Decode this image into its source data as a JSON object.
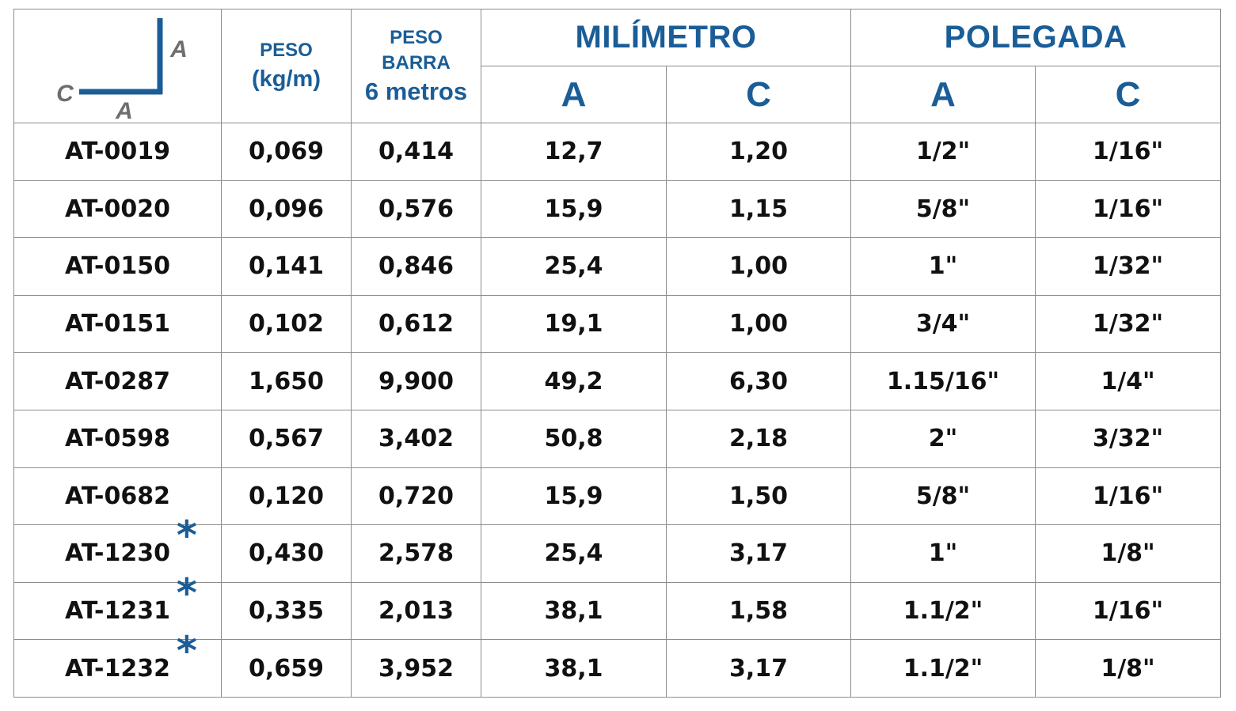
{
  "diagram": {
    "label_side": "A",
    "label_thickness": "C",
    "label_base": "A",
    "line_color": "#1a5d97",
    "label_color": "#6e6e6e"
  },
  "header": {
    "peso_label": "PESO",
    "peso_unit": "(kg/m)",
    "barra_line1": "PESO",
    "barra_line2": "BARRA",
    "barra_line3": "6 metros",
    "milimetro": "MILÍMETRO",
    "polegada": "POLEGADA",
    "mm_a": "A",
    "mm_c": "C",
    "in_a": "A",
    "in_c": "C"
  },
  "accent_color": "#1a5d97",
  "star_icon": "asterisk-icon",
  "rows": [
    {
      "code": "AT-0019",
      "star": false,
      "peso": "0,069",
      "barra": "0,414",
      "mm_a": "12,7",
      "mm_c": "1,20",
      "in_a": "1/2\"",
      "in_c": "1/16\""
    },
    {
      "code": "AT-0020",
      "star": false,
      "peso": "0,096",
      "barra": "0,576",
      "mm_a": "15,9",
      "mm_c": "1,15",
      "in_a": "5/8\"",
      "in_c": "1/16\""
    },
    {
      "code": "AT-0150",
      "star": false,
      "peso": "0,141",
      "barra": "0,846",
      "mm_a": "25,4",
      "mm_c": "1,00",
      "in_a": "1\"",
      "in_c": "1/32\""
    },
    {
      "code": "AT-0151",
      "star": false,
      "peso": "0,102",
      "barra": "0,612",
      "mm_a": "19,1",
      "mm_c": "1,00",
      "in_a": "3/4\"",
      "in_c": "1/32\""
    },
    {
      "code": "AT-0287",
      "star": false,
      "peso": "1,650",
      "barra": "9,900",
      "mm_a": "49,2",
      "mm_c": "6,30",
      "in_a": "1.15/16\"",
      "in_c": "1/4\""
    },
    {
      "code": "AT-0598",
      "star": false,
      "peso": "0,567",
      "barra": "3,402",
      "mm_a": "50,8",
      "mm_c": "2,18",
      "in_a": "2\"",
      "in_c": "3/32\""
    },
    {
      "code": "AT-0682",
      "star": false,
      "peso": "0,120",
      "barra": "0,720",
      "mm_a": "15,9",
      "mm_c": "1,50",
      "in_a": "5/8\"",
      "in_c": "1/16\""
    },
    {
      "code": "AT-1230",
      "star": true,
      "peso": "0,430",
      "barra": "2,578",
      "mm_a": "25,4",
      "mm_c": "3,17",
      "in_a": "1\"",
      "in_c": "1/8\""
    },
    {
      "code": "AT-1231",
      "star": true,
      "peso": "0,335",
      "barra": "2,013",
      "mm_a": "38,1",
      "mm_c": "1,58",
      "in_a": "1.1/2\"",
      "in_c": "1/16\""
    },
    {
      "code": "AT-1232",
      "star": true,
      "peso": "0,659",
      "barra": "3,952",
      "mm_a": "38,1",
      "mm_c": "3,17",
      "in_a": "1.1/2\"",
      "in_c": "1/8\""
    }
  ]
}
